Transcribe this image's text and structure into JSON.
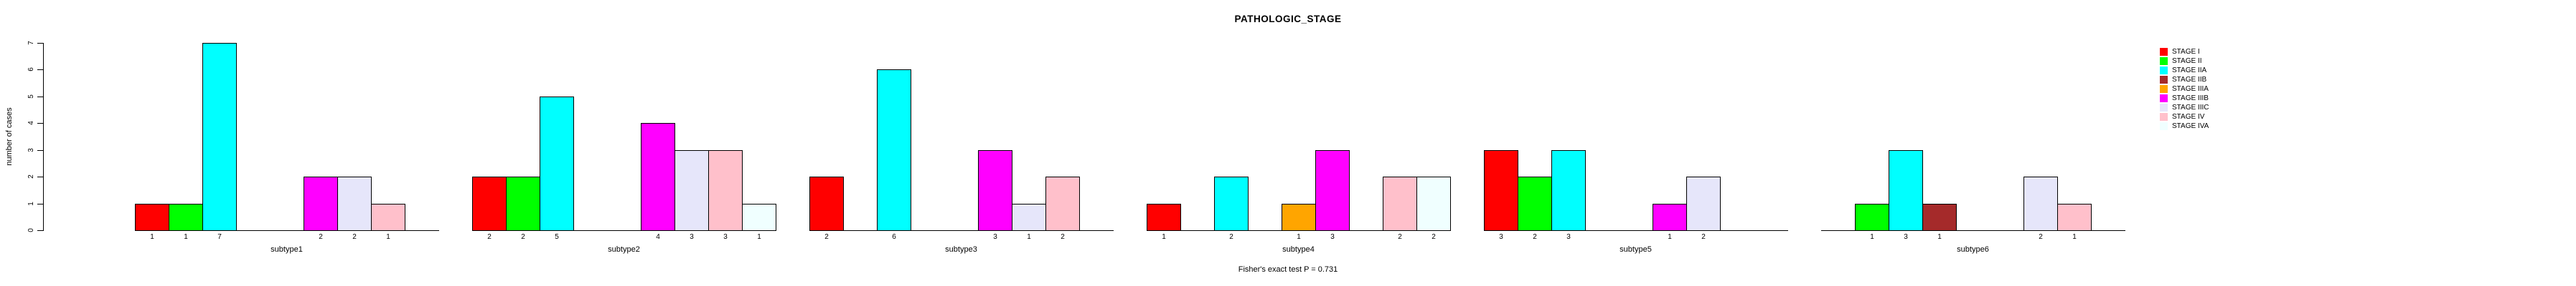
{
  "title": "PATHOLOGIC_STAGE",
  "chart_data": {
    "type": "bar",
    "title": "PATHOLOGIC_STAGE",
    "xlabel": "",
    "ylabel": "number of cases",
    "ylim": [
      0,
      7
    ],
    "yticks": [
      0,
      1,
      2,
      3,
      4,
      5,
      6,
      7
    ],
    "grid": false,
    "legend_position": "top-right",
    "annotation": "Fisher's exact test P = 0.731",
    "bar_labels_shown": true,
    "categories": [
      "subtype1",
      "subtype2",
      "subtype3",
      "subtype4",
      "subtype5",
      "subtype6"
    ],
    "stages": [
      {
        "label": "STAGE I",
        "color": "#FF0000"
      },
      {
        "label": "STAGE II",
        "color": "#00FF00"
      },
      {
        "label": "STAGE IIA",
        "color": "#00FFFF"
      },
      {
        "label": "STAGE IIB",
        "color": "#A52A2A"
      },
      {
        "label": "STAGE IIIA",
        "color": "#FFA500"
      },
      {
        "label": "STAGE IIIB",
        "color": "#FF00FF"
      },
      {
        "label": "STAGE IIIC",
        "color": "#E6E6FA"
      },
      {
        "label": "STAGE IV",
        "color": "#FFC0CB"
      },
      {
        "label": "STAGE IVA",
        "color": "#F0FFFF"
      }
    ],
    "series": [
      {
        "name": "STAGE I",
        "values": [
          1,
          2,
          2,
          1,
          3,
          0
        ]
      },
      {
        "name": "STAGE II",
        "values": [
          1,
          2,
          0,
          0,
          2,
          1
        ]
      },
      {
        "name": "STAGE IIA",
        "values": [
          7,
          5,
          6,
          2,
          3,
          3
        ]
      },
      {
        "name": "STAGE IIB",
        "values": [
          0,
          0,
          0,
          0,
          0,
          1
        ]
      },
      {
        "name": "STAGE IIIA",
        "values": [
          0,
          0,
          0,
          1,
          0,
          0
        ]
      },
      {
        "name": "STAGE IIIB",
        "values": [
          2,
          4,
          3,
          3,
          1,
          0
        ]
      },
      {
        "name": "STAGE IIIC",
        "values": [
          2,
          3,
          1,
          0,
          2,
          2
        ]
      },
      {
        "name": "STAGE IV",
        "values": [
          1,
          3,
          2,
          2,
          0,
          1
        ]
      },
      {
        "name": "STAGE IVA",
        "values": [
          0,
          1,
          0,
          2,
          0,
          0
        ]
      }
    ]
  }
}
